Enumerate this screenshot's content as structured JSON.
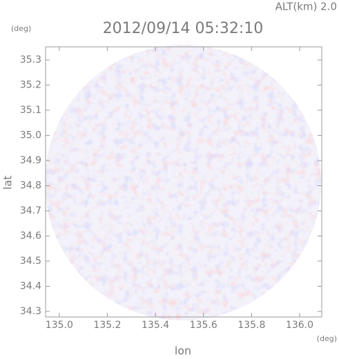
{
  "chart_data": {
    "type": "radar-map",
    "altitude_label": "ALT(km) 2.0",
    "title": "2012/09/14 05:32:10",
    "y_unit": "(deg)",
    "x_unit": "(deg)",
    "ylabel": "lat",
    "xlabel": "lon",
    "xlim": [
      134.943,
      136.092
    ],
    "ylim": [
      34.278,
      35.352
    ],
    "xticks": [
      {
        "value": 135.0,
        "label": "135.0"
      },
      {
        "value": 135.2,
        "label": "135.2"
      },
      {
        "value": 135.4,
        "label": "135.4"
      },
      {
        "value": 135.6,
        "label": "135.6"
      },
      {
        "value": 135.8,
        "label": "135.8"
      },
      {
        "value": 136.0,
        "label": "136.0"
      }
    ],
    "yticks": [
      34.3,
      34.4,
      34.5,
      34.6,
      34.7,
      34.8,
      34.9,
      {
        "value": 35.0,
        "label": "35.0"
      },
      35.1,
      35.2,
      35.3
    ]
  }
}
